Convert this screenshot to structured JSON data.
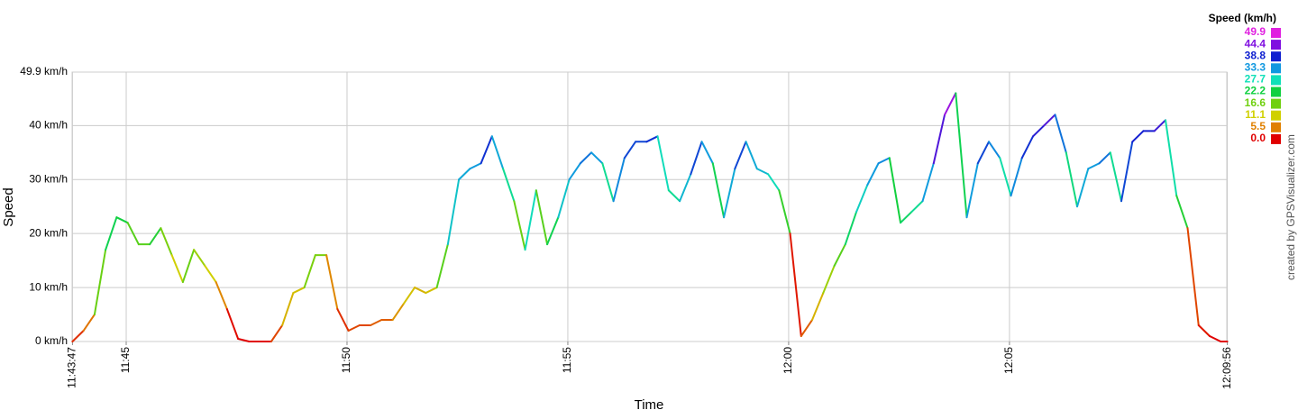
{
  "chart_data": {
    "type": "line",
    "y_label": "Speed",
    "x_label": "Time",
    "credit": "created by GPSVisualizer.com",
    "legend_title": "Speed (km/h)",
    "legend": [
      {
        "value": 49.9,
        "color": "#e020e0"
      },
      {
        "value": 44.4,
        "color": "#8010e0"
      },
      {
        "value": 38.8,
        "color": "#1020d0"
      },
      {
        "value": 33.3,
        "color": "#1098e0"
      },
      {
        "value": 27.7,
        "color": "#10e0b8"
      },
      {
        "value": 22.2,
        "color": "#10d040"
      },
      {
        "value": 16.6,
        "color": "#70d010"
      },
      {
        "value": 11.1,
        "color": "#d0d000"
      },
      {
        "value": 5.5,
        "color": "#e08000"
      },
      {
        "value": 0,
        "label": "0.0",
        "color": "#e00000"
      }
    ],
    "xlim": [
      "11:43:47",
      "12:09:56"
    ],
    "xticks": [
      "11:43:47",
      "11:45",
      "11:50",
      "11:55",
      "12:00",
      "12:05",
      "12:09:56"
    ],
    "ylim": [
      0,
      49.9
    ],
    "yticks": [
      {
        "value": 0,
        "label": "0 km/h"
      },
      {
        "value": 10,
        "label": "10 km/h"
      },
      {
        "value": 20,
        "label": "20 km/h"
      },
      {
        "value": 30,
        "label": "30 km/h"
      },
      {
        "value": 40,
        "label": "40 km/h"
      },
      {
        "value": 49.9,
        "label": "49.9 km/h"
      }
    ],
    "grid": true,
    "series": [
      {
        "name": "Speed",
        "x": [
          "11:43:47",
          "11:44:02",
          "11:44:17",
          "11:44:32",
          "11:44:47",
          "11:45:02",
          "11:45:17",
          "11:45:32",
          "11:45:47",
          "11:46:02",
          "11:46:17",
          "11:46:32",
          "11:46:47",
          "11:47:02",
          "11:47:17",
          "11:47:32",
          "11:47:47",
          "11:48:02",
          "11:48:17",
          "11:48:32",
          "11:48:47",
          "11:49:02",
          "11:49:17",
          "11:49:32",
          "11:49:47",
          "11:50:02",
          "11:50:17",
          "11:50:32",
          "11:50:47",
          "11:51:02",
          "11:51:17",
          "11:51:32",
          "11:51:47",
          "11:52:02",
          "11:52:17",
          "11:52:32",
          "11:52:47",
          "11:53:02",
          "11:53:17",
          "11:53:32",
          "11:53:47",
          "11:54:02",
          "11:54:17",
          "11:54:32",
          "11:54:47",
          "11:55:02",
          "11:55:17",
          "11:55:32",
          "11:55:47",
          "11:56:02",
          "11:56:17",
          "11:56:32",
          "11:56:47",
          "11:57:02",
          "11:57:17",
          "11:57:32",
          "11:57:47",
          "11:58:02",
          "11:58:17",
          "11:58:32",
          "11:58:47",
          "11:59:02",
          "11:59:17",
          "11:59:32",
          "11:59:47",
          "12:00:02",
          "12:00:17",
          "12:00:32",
          "12:00:47",
          "12:01:02",
          "12:01:17",
          "12:01:32",
          "12:01:47",
          "12:02:02",
          "12:02:17",
          "12:02:32",
          "12:02:47",
          "12:03:02",
          "12:03:17",
          "12:03:32",
          "12:03:47",
          "12:04:02",
          "12:04:17",
          "12:04:32",
          "12:04:47",
          "12:05:02",
          "12:05:17",
          "12:05:32",
          "12:05:47",
          "12:06:02",
          "12:06:17",
          "12:06:32",
          "12:06:47",
          "12:07:02",
          "12:07:17",
          "12:07:32",
          "12:07:47",
          "12:08:02",
          "12:08:17",
          "12:08:32",
          "12:08:47",
          "12:09:02",
          "12:09:17",
          "12:09:32",
          "12:09:47",
          "12:09:56"
        ],
        "values": [
          0,
          2,
          5,
          17,
          23,
          22,
          18,
          18,
          21,
          16,
          11,
          17,
          14,
          11,
          6,
          0.5,
          0,
          0,
          0,
          3,
          9,
          10,
          16,
          16,
          6,
          2,
          3,
          3,
          4,
          4,
          7,
          10,
          9,
          10,
          18,
          30,
          32,
          33,
          38,
          32,
          26,
          17,
          28,
          18,
          23,
          30,
          33,
          35,
          33,
          26,
          34,
          37,
          37,
          38,
          28,
          26,
          31,
          37,
          33,
          23,
          32,
          37,
          32,
          31,
          28,
          20,
          1,
          4,
          9,
          14,
          18,
          24,
          29,
          33,
          34,
          22,
          24,
          26,
          33,
          42,
          46,
          23,
          33,
          37,
          34,
          27,
          34,
          38,
          40,
          42,
          35,
          25,
          32,
          33,
          35,
          26,
          37,
          39,
          39,
          41,
          27,
          21,
          3,
          1,
          0,
          0
        ]
      }
    ]
  }
}
